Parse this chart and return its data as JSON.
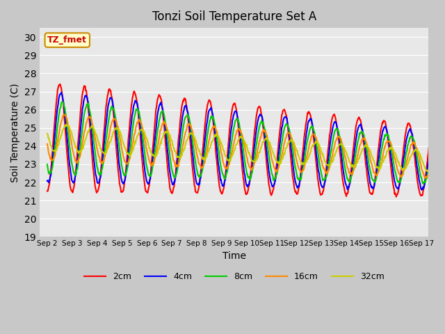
{
  "title": "Tonzi Soil Temperature Set A",
  "xlabel": "Time",
  "ylabel": "Soil Temperature (C)",
  "ylim": [
    19.0,
    30.5
  ],
  "yticks": [
    19.0,
    20.0,
    21.0,
    22.0,
    23.0,
    24.0,
    25.0,
    26.0,
    27.0,
    28.0,
    29.0,
    30.0
  ],
  "annotation_text": "TZ_fmet",
  "annotation_bg": "#ffffcc",
  "annotation_border": "#cc8800",
  "legend_labels": [
    "2cm",
    "4cm",
    "8cm",
    "16cm",
    "32cm"
  ],
  "line_colors": [
    "#ff0000",
    "#0000ff",
    "#00cc00",
    "#ff8800",
    "#cccc00"
  ],
  "line_widths": [
    1.5,
    1.5,
    1.5,
    1.5,
    1.5
  ],
  "xtick_labels": [
    "Sep 2",
    "Sep 3",
    "Sep 4",
    "Sep 5",
    "Sep 6",
    "Sep 7",
    "Sep 8",
    "Sep 9",
    "Sep 10",
    "Sep 11",
    "Sep 12",
    "Sep 13",
    "Sep 14",
    "Sep 15",
    "Sep 16",
    "Sep 17"
  ],
  "n_days": 16,
  "points_per_day": 48
}
